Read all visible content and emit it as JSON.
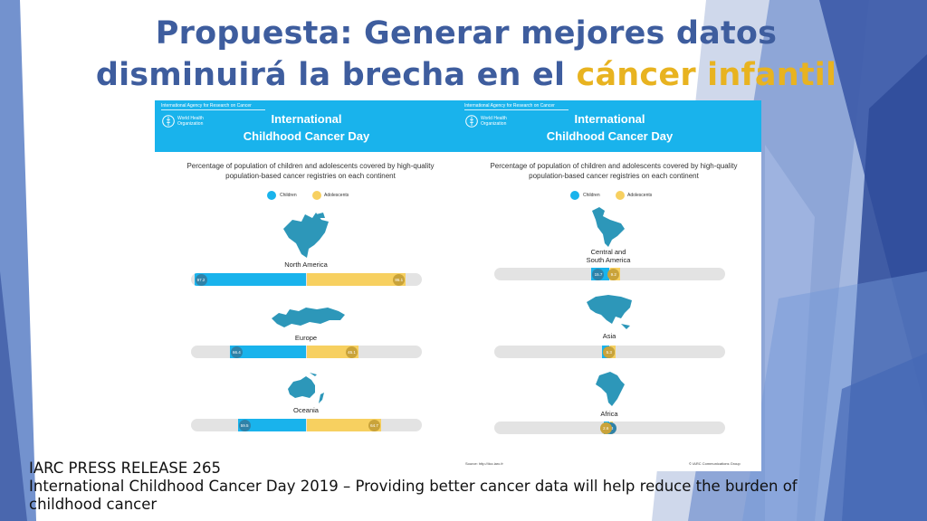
{
  "slide": {
    "title_line1": "Propuesta: Generar mejores datos",
    "title_line2_prefix": "disminuirá la brecha en el ",
    "title_highlight": "cáncer infantil",
    "colors": {
      "title": "#3e5d9e",
      "highlight": "#e8b320",
      "banner": "#19b3ec",
      "children": "#19b3ec",
      "adolescents": "#f7d060"
    }
  },
  "infographic": {
    "agency": "International Agency for Research on Cancer",
    "who": "World Health Organization",
    "banner_line1": "International",
    "banner_line2": "Childhood Cancer Day",
    "subtitle": "Percentage of population of children and adolescents covered by high-quality population-based cancer registries on each continent",
    "legend": {
      "children": "Children",
      "adolescents": "Adolescents"
    },
    "left_regions": [
      {
        "name": "North America",
        "children": 97.2,
        "adolescents": 86.1,
        "icon": "north-america-map-icon"
      },
      {
        "name": "Europe",
        "children": 66.4,
        "adolescents": 45.1,
        "icon": "europe-map-icon"
      },
      {
        "name": "Oceania",
        "children": 59.5,
        "adolescents": 64.7,
        "icon": "oceania-map-icon"
      }
    ],
    "right_regions": [
      {
        "name": "Central and South America",
        "name_line1": "Central and",
        "name_line2": "South America",
        "children": 15.7,
        "adolescents": 9.2,
        "icon": "south-america-map-icon"
      },
      {
        "name": "Asia",
        "children": 6.5,
        "adolescents": 5.3,
        "icon": "asia-map-icon"
      },
      {
        "name": "Africa",
        "children": 5.3,
        "adolescents": 2.6,
        "icon": "africa-map-icon"
      }
    ],
    "source": "Source: http://iicc.iarc.fr",
    "credit": "© IARC Communications Group"
  },
  "caption": {
    "line1": "IARC PRESS RELEASE 265",
    "line2": "International Childhood Cancer Day 2019 – Providing better cancer data will help reduce the burden of childhood cancer"
  }
}
